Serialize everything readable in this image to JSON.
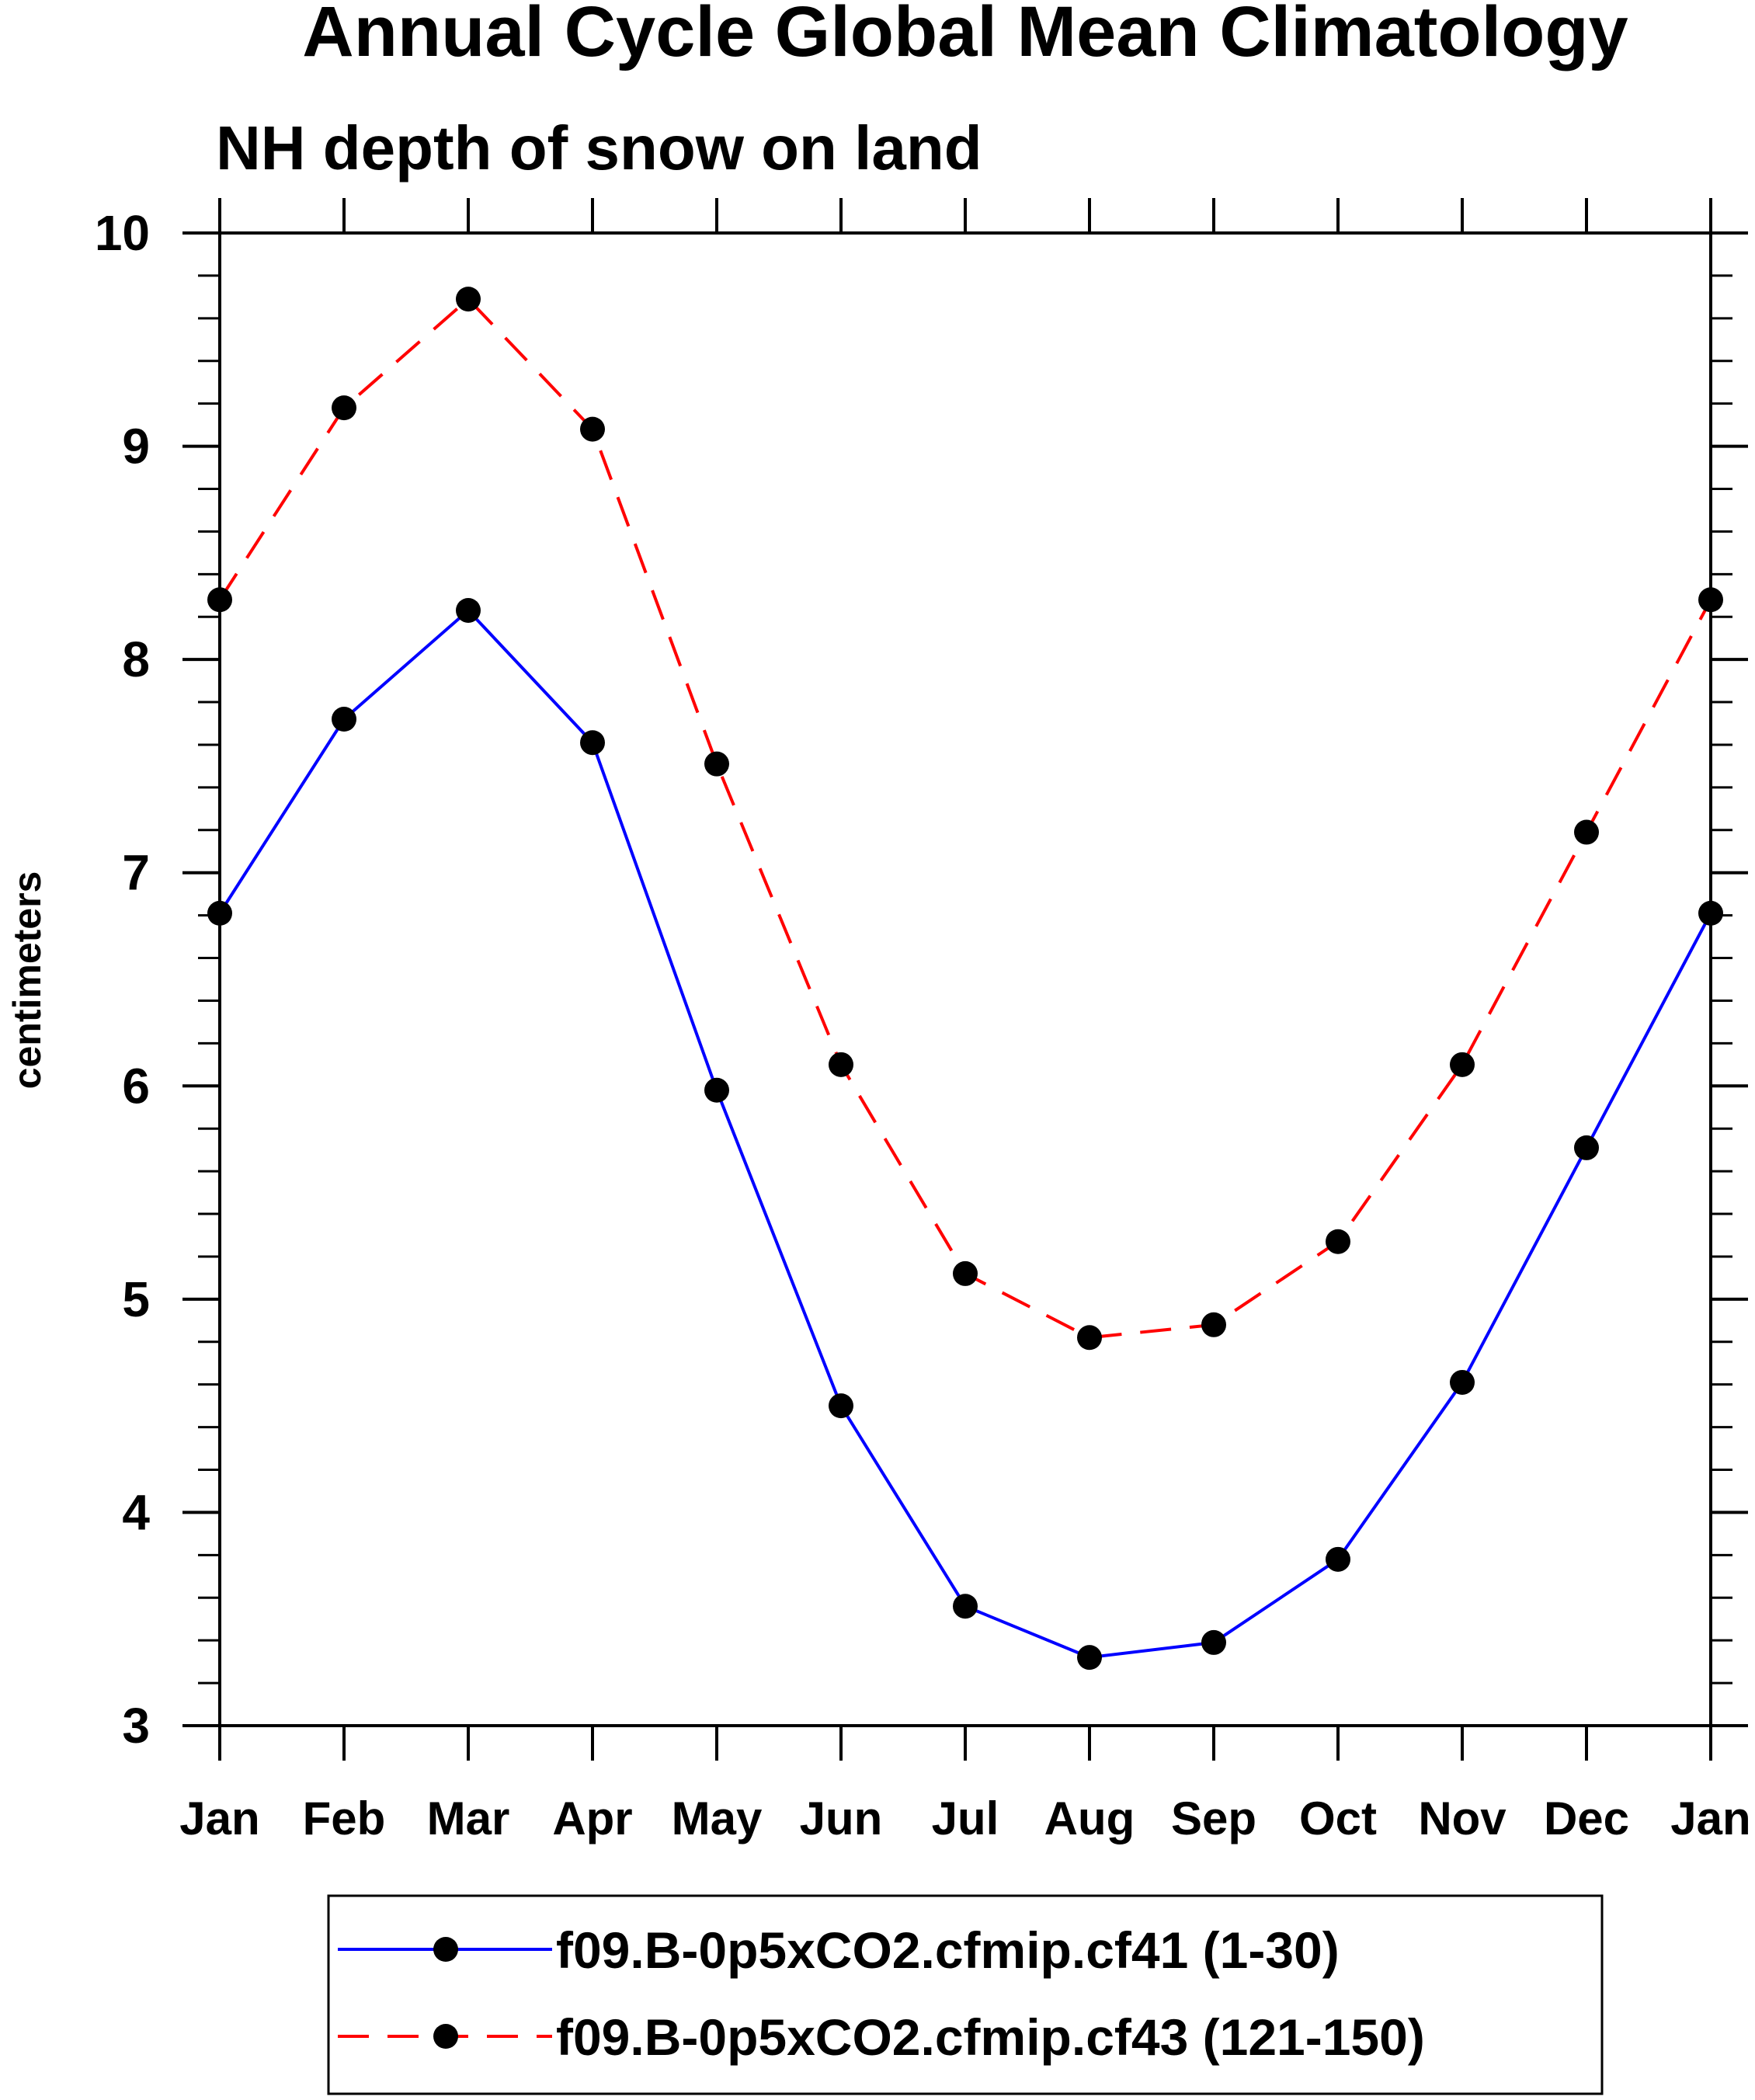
{
  "chart_data": {
    "type": "line",
    "title": "Annual Cycle Global Mean Climatology",
    "subtitle": "NH depth of snow on land",
    "xlabel": "",
    "ylabel": "centimeters",
    "categories": [
      "Jan",
      "Feb",
      "Mar",
      "Apr",
      "May",
      "Jun",
      "Jul",
      "Aug",
      "Sep",
      "Oct",
      "Nov",
      "Dec",
      "Jan"
    ],
    "ylim": [
      3,
      10
    ],
    "yticks": [
      3,
      4,
      5,
      6,
      7,
      8,
      9,
      10
    ],
    "yminor_step": 0.2,
    "grid": false,
    "legend_position": "bottom",
    "series": [
      {
        "name": "f09.B-0p5xCO2.cfmip.cf41 (1-30)",
        "color": "#0000ff",
        "dash": "solid",
        "marker": "filled-circle",
        "values": [
          6.81,
          7.72,
          8.23,
          7.61,
          5.98,
          4.5,
          3.56,
          3.32,
          3.39,
          3.78,
          4.61,
          5.71,
          6.81
        ]
      },
      {
        "name": "f09.B-0p5xCO2.cfmip.cf43 (121-150)",
        "color": "#ff0000",
        "dash": "dashed",
        "marker": "filled-circle",
        "values": [
          8.28,
          9.18,
          9.69,
          9.08,
          7.51,
          6.1,
          5.12,
          4.82,
          4.88,
          5.27,
          6.1,
          7.19,
          8.28
        ]
      }
    ]
  }
}
